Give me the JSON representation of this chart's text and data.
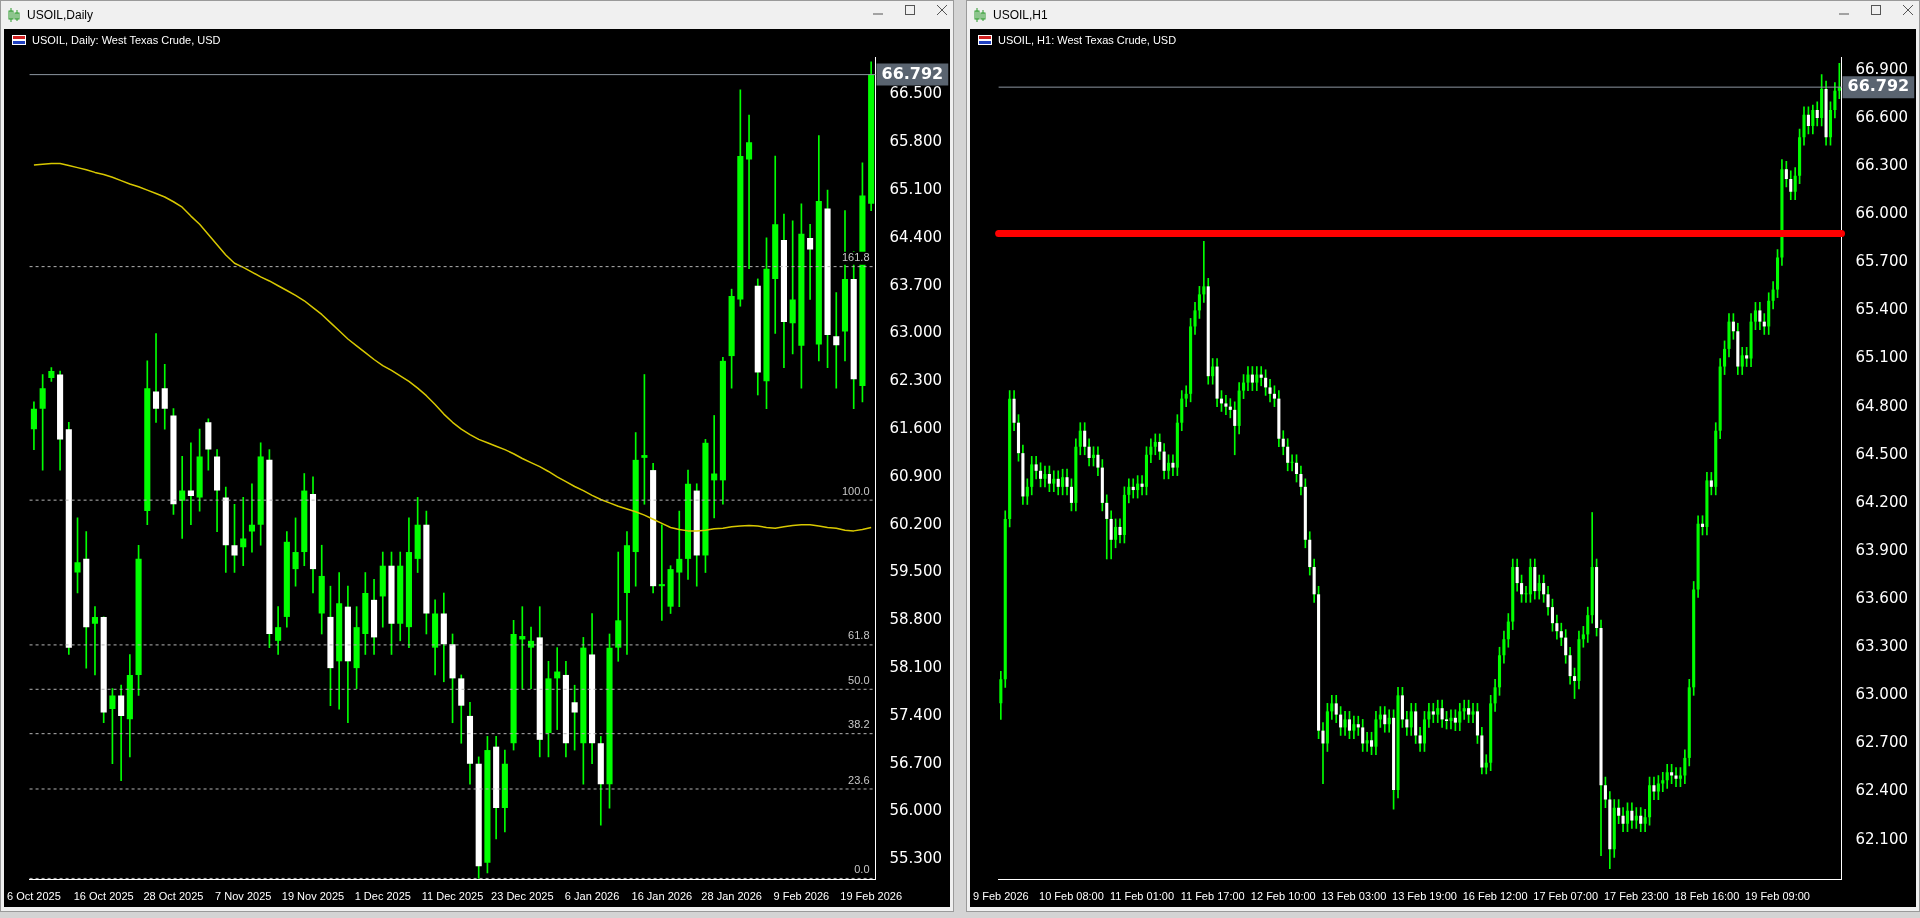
{
  "chart_data": [
    {
      "type": "candlestick",
      "title": "USOIL,Daily",
      "subtitle": "USOIL, Daily:  West Texas Crude, USD",
      "categories": [
        "6 Oct 2025",
        null,
        null,
        null,
        null,
        null,
        null,
        null,
        "16 Oct 2025",
        null,
        null,
        null,
        null,
        null,
        null,
        null,
        "28 Oct 2025",
        null,
        null,
        null,
        null,
        null,
        null,
        null,
        "7 Nov 2025",
        null,
        null,
        null,
        null,
        null,
        null,
        null,
        "19 Nov 2025",
        null,
        null,
        null,
        null,
        null,
        null,
        null,
        "1 Dec 2025",
        null,
        null,
        null,
        null,
        null,
        null,
        null,
        "11 Dec 2025",
        null,
        null,
        null,
        null,
        null,
        null,
        null,
        "23 Dec 2025",
        null,
        null,
        null,
        null,
        null,
        null,
        null,
        "6 Jan 2026",
        null,
        null,
        null,
        null,
        null,
        null,
        null,
        "16 Jan 2026",
        null,
        null,
        null,
        null,
        null,
        null,
        null,
        "28 Jan 2026",
        null,
        null,
        null,
        null,
        null,
        null,
        null,
        "9 Feb 2026",
        null,
        null,
        null,
        null,
        null,
        null,
        null,
        "19 Feb 2026"
      ],
      "ohlc": [
        [
          61.6,
          62.0,
          61.3,
          61.9
        ],
        [
          61.9,
          62.4,
          61.0,
          62.2
        ],
        [
          62.35,
          62.5,
          62.3,
          62.45
        ],
        [
          62.4,
          62.45,
          61.0,
          61.45
        ],
        [
          61.6,
          61.7,
          58.3,
          58.4
        ],
        [
          59.5,
          60.3,
          59.2,
          59.65
        ],
        [
          59.7,
          60.1,
          58.1,
          58.7
        ],
        [
          58.75,
          59.0,
          58.0,
          58.85
        ],
        [
          58.85,
          58.85,
          57.3,
          57.45
        ],
        [
          57.5,
          57.8,
          56.7,
          57.7
        ],
        [
          57.7,
          57.85,
          56.45,
          57.4
        ],
        [
          57.35,
          58.3,
          56.8,
          58.0
        ],
        [
          58.0,
          59.9,
          57.7,
          59.7
        ],
        [
          60.4,
          62.6,
          60.2,
          62.2
        ],
        [
          62.15,
          63.0,
          61.7,
          61.9
        ],
        [
          62.2,
          62.55,
          61.6,
          61.9
        ],
        [
          61.8,
          61.9,
          60.35,
          60.5
        ],
        [
          60.55,
          61.2,
          60.0,
          60.7
        ],
        [
          60.7,
          61.4,
          60.2,
          60.62
        ],
        [
          60.6,
          61.6,
          60.4,
          61.2
        ],
        [
          61.7,
          61.75,
          61.0,
          61.3
        ],
        [
          61.2,
          61.3,
          60.1,
          60.7
        ],
        [
          60.6,
          60.75,
          59.5,
          59.9
        ],
        [
          59.9,
          60.5,
          59.5,
          59.75
        ],
        [
          59.87,
          60.6,
          59.6,
          60.0
        ],
        [
          60.1,
          60.8,
          59.8,
          60.2
        ],
        [
          60.2,
          61.4,
          59.9,
          61.2
        ],
        [
          61.15,
          61.3,
          58.4,
          58.6
        ],
        [
          58.5,
          59.0,
          58.3,
          58.7
        ],
        [
          58.85,
          60.1,
          58.7,
          59.95
        ],
        [
          59.55,
          60.3,
          59.3,
          59.8
        ],
        [
          59.8,
          60.95,
          59.6,
          60.7
        ],
        [
          60.65,
          60.9,
          59.2,
          59.55
        ],
        [
          58.9,
          59.9,
          58.6,
          59.45
        ],
        [
          58.85,
          59.3,
          57.55,
          58.1
        ],
        [
          58.2,
          59.5,
          57.5,
          59.05
        ],
        [
          59.0,
          59.3,
          57.3,
          58.2
        ],
        [
          58.1,
          59.0,
          57.8,
          58.7
        ],
        [
          58.6,
          59.5,
          58.3,
          59.2
        ],
        [
          59.1,
          59.4,
          58.3,
          58.55
        ],
        [
          59.15,
          59.8,
          58.7,
          59.6
        ],
        [
          59.6,
          59.8,
          58.3,
          58.75
        ],
        [
          58.75,
          59.8,
          58.5,
          59.6
        ],
        [
          58.7,
          60.3,
          58.4,
          59.8
        ],
        [
          59.7,
          60.6,
          59.5,
          60.2
        ],
        [
          60.2,
          60.4,
          58.6,
          58.9
        ],
        [
          58.4,
          59.1,
          58.0,
          58.9
        ],
        [
          58.9,
          59.2,
          57.9,
          58.45
        ],
        [
          58.45,
          58.6,
          57.3,
          57.95
        ],
        [
          57.95,
          58.0,
          57.0,
          57.55
        ],
        [
          57.4,
          57.6,
          56.4,
          56.7
        ],
        [
          56.7,
          56.8,
          55.02,
          55.2
        ],
        [
          55.25,
          57.1,
          55.1,
          56.9
        ],
        [
          56.95,
          57.1,
          55.6,
          56.05
        ],
        [
          56.05,
          56.9,
          55.7,
          56.7
        ],
        [
          57.0,
          58.8,
          56.9,
          58.6
        ],
        [
          58.52,
          59.0,
          57.8,
          58.57
        ],
        [
          58.4,
          58.7,
          57.8,
          58.5
        ],
        [
          58.55,
          59.0,
          56.8,
          57.05
        ],
        [
          57.15,
          58.2,
          56.8,
          57.95
        ],
        [
          57.95,
          58.4,
          57.2,
          58.05
        ],
        [
          58.0,
          58.2,
          56.8,
          57.0
        ],
        [
          57.6,
          57.85,
          56.9,
          57.45
        ],
        [
          57.0,
          58.55,
          56.4,
          58.4
        ],
        [
          58.3,
          58.9,
          56.7,
          57.0
        ],
        [
          57.0,
          57.1,
          55.8,
          56.4
        ],
        [
          56.4,
          58.6,
          56.05,
          58.4
        ],
        [
          58.4,
          59.8,
          58.2,
          58.8
        ],
        [
          59.2,
          60.1,
          58.3,
          59.9
        ],
        [
          59.8,
          61.55,
          59.3,
          61.15
        ],
        [
          61.18,
          62.4,
          60.5,
          61.22
        ],
        [
          61.0,
          61.1,
          59.2,
          59.3
        ],
        [
          59.3,
          60.2,
          58.8,
          59.33
        ],
        [
          59.0,
          59.6,
          58.9,
          59.55
        ],
        [
          59.5,
          60.4,
          59.0,
          59.7
        ],
        [
          59.7,
          61.0,
          59.4,
          60.8
        ],
        [
          60.7,
          60.8,
          59.3,
          59.75
        ],
        [
          59.75,
          61.45,
          59.5,
          61.4
        ],
        [
          60.85,
          61.8,
          60.3,
          60.95
        ],
        [
          60.85,
          62.65,
          60.5,
          62.6
        ],
        [
          62.67,
          63.65,
          62.2,
          63.55
        ],
        [
          63.5,
          66.57,
          63.4,
          65.6
        ],
        [
          65.55,
          66.2,
          63.95,
          65.8
        ],
        [
          63.7,
          63.8,
          62.1,
          62.43
        ],
        [
          62.3,
          64.4,
          61.9,
          63.95
        ],
        [
          63.8,
          65.6,
          63.0,
          64.6
        ],
        [
          64.37,
          64.75,
          62.5,
          63.17
        ],
        [
          63.15,
          64.65,
          62.7,
          63.5
        ],
        [
          62.82,
          64.9,
          62.2,
          64.46
        ],
        [
          64.4,
          64.6,
          63.5,
          64.23
        ],
        [
          62.84,
          65.9,
          62.6,
          64.94
        ],
        [
          64.83,
          65.1,
          62.5,
          62.98
        ],
        [
          62.96,
          63.6,
          62.2,
          62.83
        ],
        [
          63.03,
          64.8,
          62.6,
          63.8
        ],
        [
          63.8,
          64.2,
          61.9,
          62.33
        ],
        [
          62.23,
          65.5,
          62.0,
          65.02
        ],
        [
          64.9,
          66.98,
          64.8,
          66.792
        ]
      ],
      "series": [
        {
          "type": "line",
          "color": "#d8c800",
          "values": [
            65.47,
            65.48,
            65.49,
            65.49,
            65.46,
            65.43,
            65.4,
            65.36,
            65.33,
            65.29,
            65.24,
            65.19,
            65.15,
            65.1,
            65.05,
            65.0,
            64.93,
            64.85,
            64.72,
            64.6,
            64.45,
            64.3,
            64.15,
            64.03,
            63.97,
            63.9,
            63.83,
            63.77,
            63.7,
            63.63,
            63.56,
            63.48,
            63.38,
            63.28,
            63.16,
            63.04,
            62.92,
            62.82,
            62.72,
            62.62,
            62.53,
            62.46,
            62.38,
            62.3,
            62.2,
            62.09,
            61.96,
            61.82,
            61.7,
            61.6,
            61.52,
            61.45,
            61.4,
            61.35,
            61.3,
            61.24,
            61.17,
            61.11,
            61.05,
            60.98,
            60.9,
            60.83,
            60.76,
            60.7,
            60.63,
            60.57,
            60.52,
            60.47,
            60.43,
            60.39,
            60.34,
            60.28,
            60.22,
            60.16,
            60.13,
            60.11,
            60.11,
            60.12,
            60.14,
            60.15,
            60.17,
            60.18,
            60.19,
            60.18,
            60.16,
            60.15,
            60.17,
            60.19,
            60.2,
            60.2,
            60.18,
            60.16,
            60.15,
            60.12,
            60.11,
            60.13,
            60.16
          ]
        }
      ],
      "ref_lines": [
        {
          "axis": "y",
          "value": 66.792,
          "label": "66.792",
          "color": "#8c96a0"
        },
        {
          "axis": "y",
          "value": 63.98,
          "label": null,
          "color": "#b4b4b4",
          "line_style": "dashed"
        },
        {
          "axis": "y",
          "value": 60.56,
          "label": null,
          "color": "#b4b4b4",
          "line_style": "dashed"
        },
        {
          "axis": "y",
          "value": 58.44,
          "label": null,
          "color": "#b4b4b4",
          "line_style": "dashed"
        },
        {
          "axis": "y",
          "value": 57.79,
          "label": null,
          "color": "#b4b4b4",
          "line_style": "dashed"
        },
        {
          "axis": "y",
          "value": 57.14,
          "label": null,
          "color": "#b4b4b4",
          "line_style": "dashed"
        },
        {
          "axis": "y",
          "value": 56.33,
          "label": null,
          "color": "#b4b4b4",
          "line_style": "dashed"
        },
        {
          "axis": "y",
          "value": 55.02,
          "label": null,
          "color": "#b4b4b4",
          "line_style": "dashed"
        }
      ],
      "annotations": [
        {
          "text": "161.8",
          "y": 63.98
        },
        {
          "text": "100.0",
          "y": 60.56
        },
        {
          "text": "61.8",
          "y": 58.44
        },
        {
          "text": "50.0",
          "y": 57.79
        },
        {
          "text": "38.2",
          "y": 57.14
        },
        {
          "text": "23.6",
          "y": 56.33
        },
        {
          "text": "0.0",
          "y": 55.02
        }
      ],
      "ylim": [
        55.0,
        67.05
      ],
      "yticks": [
        {
          "value": 55.3,
          "label": "55.300"
        },
        {
          "value": 56.0,
          "label": "56.000"
        },
        {
          "value": 56.7,
          "label": "56.700"
        },
        {
          "value": 57.4,
          "label": "57.400"
        },
        {
          "value": 58.1,
          "label": "58.100"
        },
        {
          "value": 58.8,
          "label": "58.800"
        },
        {
          "value": 59.5,
          "label": "59.500"
        },
        {
          "value": 60.2,
          "label": "60.200"
        },
        {
          "value": 60.9,
          "label": "60.900"
        },
        {
          "value": 61.6,
          "label": "61.600"
        },
        {
          "value": 62.3,
          "label": "62.300"
        },
        {
          "value": 63.0,
          "label": "63.000"
        },
        {
          "value": 63.7,
          "label": "63.700"
        },
        {
          "value": 64.4,
          "label": "64.400"
        },
        {
          "value": 65.1,
          "label": "65.100"
        },
        {
          "value": 65.8,
          "label": "65.800"
        },
        {
          "value": 66.5,
          "label": "66.500"
        }
      ],
      "grid": false,
      "legend": false
    },
    {
      "type": "candlestick",
      "title": "USOIL,H1",
      "subtitle": "USOIL, H1:  West Texas Crude, USD",
      "categories": [
        "9 Feb 2026",
        null,
        null,
        null,
        null,
        null,
        null,
        null,
        null,
        null,
        null,
        null,
        null,
        null,
        null,
        null,
        "10 Feb 08:00",
        null,
        null,
        null,
        null,
        null,
        null,
        null,
        null,
        null,
        null,
        null,
        null,
        null,
        null,
        null,
        "11 Feb 01:00",
        null,
        null,
        null,
        null,
        null,
        null,
        null,
        null,
        null,
        null,
        null,
        null,
        null,
        null,
        null,
        "11 Feb 17:00",
        null,
        null,
        null,
        null,
        null,
        null,
        null,
        null,
        null,
        null,
        null,
        null,
        null,
        null,
        null,
        "12 Feb 10:00",
        null,
        null,
        null,
        null,
        null,
        null,
        null,
        null,
        null,
        null,
        null,
        null,
        null,
        null,
        null,
        "13 Feb 03:00",
        null,
        null,
        null,
        null,
        null,
        null,
        null,
        null,
        null,
        null,
        null,
        null,
        null,
        null,
        null,
        "13 Feb 19:00",
        null,
        null,
        null,
        null,
        null,
        null,
        null,
        null,
        null,
        null,
        null,
        null,
        null,
        null,
        null,
        "16 Feb 12:00",
        null,
        null,
        null,
        null,
        null,
        null,
        null,
        null,
        null,
        null,
        null,
        null,
        null,
        null,
        null,
        "17 Feb 07:00",
        null,
        null,
        null,
        null,
        null,
        null,
        null,
        null,
        null,
        null,
        null,
        null,
        null,
        null,
        null,
        "17 Feb 23:00",
        null,
        null,
        null,
        null,
        null,
        null,
        null,
        null,
        null,
        null,
        null,
        null,
        null,
        null,
        null,
        "18 Feb 16:00",
        null,
        null,
        null,
        null,
        null,
        null,
        null,
        null,
        null,
        null,
        null,
        null,
        null,
        null,
        null,
        "19 Feb 09:00",
        null,
        null,
        null,
        null,
        null,
        null,
        null,
        null,
        null,
        null,
        null,
        null,
        null,
        null
      ],
      "ohlc": [
        [
          62.95,
          63.15,
          62.85,
          63.1
        ],
        [
          63.1,
          64.15,
          63.05,
          64.1
        ],
        [
          64.1,
          64.9,
          64.05,
          64.85
        ],
        [
          64.85,
          64.9,
          64.65,
          64.7
        ],
        [
          64.7,
          64.75,
          64.46,
          64.51
        ],
        [
          64.51,
          64.56,
          64.19,
          64.24
        ],
        [
          64.24,
          64.35,
          64.19,
          64.3
        ],
        [
          64.3,
          64.49,
          64.25,
          64.44
        ],
        [
          64.44,
          64.49,
          64.35,
          64.4
        ],
        [
          64.4,
          64.45,
          64.3,
          64.35
        ],
        [
          64.35,
          64.43,
          64.3,
          64.38
        ],
        [
          64.38,
          64.43,
          64.27,
          64.32
        ],
        [
          64.32,
          64.4,
          64.27,
          64.35
        ],
        [
          64.35,
          64.4,
          64.25,
          64.3
        ],
        [
          64.3,
          64.41,
          64.25,
          64.36
        ],
        [
          64.36,
          64.41,
          64.25,
          64.3
        ],
        [
          64.3,
          64.35,
          64.15,
          64.2
        ],
        [
          64.2,
          64.6,
          64.15,
          64.55
        ],
        [
          64.55,
          64.7,
          64.5,
          64.65
        ],
        [
          64.65,
          64.7,
          64.5,
          64.55
        ],
        [
          64.55,
          64.6,
          64.43,
          64.48
        ],
        [
          64.48,
          64.55,
          64.43,
          64.5
        ],
        [
          64.5,
          64.55,
          64.37,
          64.42
        ],
        [
          64.42,
          64.47,
          64.15,
          64.2
        ],
        [
          64.2,
          64.25,
          63.85,
          64.1
        ],
        [
          64.1,
          64.15,
          63.85,
          63.97
        ],
        [
          63.97,
          64.1,
          63.92,
          64.05
        ],
        [
          64.05,
          64.1,
          63.95,
          64.0
        ],
        [
          64.0,
          64.3,
          63.95,
          64.25
        ],
        [
          64.25,
          64.35,
          64.2,
          64.3
        ],
        [
          64.3,
          64.35,
          64.23,
          64.28
        ],
        [
          64.28,
          64.37,
          64.23,
          64.32
        ],
        [
          64.32,
          64.37,
          64.25,
          64.3
        ],
        [
          64.3,
          64.55,
          64.25,
          64.5
        ],
        [
          64.5,
          64.6,
          64.45,
          64.55
        ],
        [
          64.55,
          64.63,
          64.5,
          64.58
        ],
        [
          64.58,
          64.63,
          64.47,
          64.52
        ],
        [
          64.52,
          64.57,
          64.35,
          64.4
        ],
        [
          64.4,
          64.5,
          64.35,
          64.45
        ],
        [
          64.45,
          64.5,
          64.37,
          64.42
        ],
        [
          64.42,
          64.75,
          64.37,
          64.7
        ],
        [
          64.7,
          64.9,
          64.65,
          64.85
        ],
        [
          64.85,
          64.93,
          64.8,
          64.88
        ],
        [
          64.88,
          65.35,
          64.83,
          65.3
        ],
        [
          65.3,
          65.45,
          65.25,
          65.4
        ],
        [
          65.4,
          65.55,
          65.35,
          65.5
        ],
        [
          65.5,
          65.83,
          65.45,
          65.55
        ],
        [
          65.55,
          65.6,
          64.94,
          64.99
        ],
        [
          64.99,
          65.1,
          64.94,
          65.05
        ],
        [
          65.05,
          65.1,
          64.8,
          64.85
        ],
        [
          64.85,
          64.9,
          64.77,
          64.82
        ],
        [
          64.82,
          64.87,
          64.75,
          64.8
        ],
        [
          64.8,
          64.85,
          64.73,
          64.78
        ],
        [
          64.78,
          64.83,
          64.5,
          64.68
        ],
        [
          64.68,
          64.95,
          64.63,
          64.9
        ],
        [
          64.9,
          65.0,
          64.85,
          64.95
        ],
        [
          64.95,
          65.05,
          64.9,
          65.0
        ],
        [
          65.0,
          65.05,
          64.9,
          64.95
        ],
        [
          64.95,
          65.05,
          64.9,
          65.0
        ],
        [
          65.0,
          65.05,
          64.93,
          64.98
        ],
        [
          64.98,
          65.03,
          64.87,
          64.92
        ],
        [
          64.92,
          64.97,
          64.83,
          64.88
        ],
        [
          64.88,
          64.93,
          64.8,
          64.85
        ],
        [
          64.85,
          64.9,
          64.55,
          64.6
        ],
        [
          64.6,
          64.65,
          64.5,
          64.55
        ],
        [
          64.55,
          64.6,
          64.4,
          64.45
        ],
        [
          64.45,
          64.5,
          64.4,
          64.45
        ],
        [
          64.45,
          64.5,
          64.33,
          64.38
        ],
        [
          64.38,
          64.43,
          64.25,
          64.3
        ],
        [
          64.3,
          64.35,
          63.92,
          63.97
        ],
        [
          63.97,
          64.02,
          63.75,
          63.8
        ],
        [
          63.8,
          63.85,
          63.58,
          63.63
        ],
        [
          63.63,
          63.68,
          62.73,
          62.78
        ],
        [
          62.78,
          62.83,
          62.45,
          62.7
        ],
        [
          62.7,
          62.95,
          62.65,
          62.9
        ],
        [
          62.9,
          63.0,
          62.85,
          62.95
        ],
        [
          62.95,
          63.0,
          62.83,
          62.88
        ],
        [
          62.88,
          62.93,
          62.75,
          62.8
        ],
        [
          62.8,
          62.9,
          62.75,
          62.85
        ],
        [
          62.85,
          62.9,
          62.73,
          62.78
        ],
        [
          62.78,
          62.87,
          62.73,
          62.82
        ],
        [
          62.82,
          62.87,
          62.75,
          62.8
        ],
        [
          62.8,
          62.85,
          62.65,
          62.7
        ],
        [
          62.7,
          62.77,
          62.65,
          62.72
        ],
        [
          62.72,
          62.77,
          62.63,
          62.68
        ],
        [
          62.68,
          62.9,
          62.63,
          62.85
        ],
        [
          62.85,
          62.93,
          62.8,
          62.88
        ],
        [
          62.88,
          62.93,
          62.77,
          62.82
        ],
        [
          62.82,
          62.91,
          62.77,
          62.86
        ],
        [
          62.86,
          62.91,
          62.29,
          62.41
        ],
        [
          62.41,
          63.05,
          62.36,
          63.0
        ],
        [
          63.0,
          63.05,
          62.8,
          62.85
        ],
        [
          62.85,
          62.9,
          62.75,
          62.8
        ],
        [
          62.8,
          62.95,
          62.75,
          62.9
        ],
        [
          62.9,
          62.95,
          62.7,
          62.75
        ],
        [
          62.75,
          62.8,
          62.65,
          62.7
        ],
        [
          62.7,
          62.9,
          62.65,
          62.85
        ],
        [
          62.85,
          62.95,
          62.8,
          62.9
        ],
        [
          62.9,
          62.95,
          62.83,
          62.88
        ],
        [
          62.88,
          62.97,
          62.83,
          62.92
        ],
        [
          62.92,
          62.97,
          62.8,
          62.85
        ],
        [
          62.85,
          62.9,
          62.79,
          62.84
        ],
        [
          62.84,
          62.91,
          62.79,
          62.86
        ],
        [
          62.86,
          62.91,
          62.78,
          62.83
        ],
        [
          62.83,
          62.95,
          62.78,
          62.9
        ],
        [
          62.9,
          62.97,
          62.85,
          62.92
        ],
        [
          62.92,
          62.97,
          62.83,
          62.88
        ],
        [
          62.88,
          62.95,
          62.83,
          62.9
        ],
        [
          62.9,
          62.95,
          62.7,
          62.75
        ],
        [
          62.75,
          62.8,
          62.51,
          62.55
        ],
        [
          62.55,
          62.63,
          62.51,
          62.58
        ],
        [
          62.58,
          63.0,
          62.53,
          62.95
        ],
        [
          62.95,
          63.1,
          62.9,
          63.05
        ],
        [
          63.05,
          63.3,
          63.0,
          63.25
        ],
        [
          63.25,
          63.4,
          63.2,
          63.35
        ],
        [
          63.35,
          63.51,
          63.3,
          63.46
        ],
        [
          63.46,
          63.85,
          63.41,
          63.8
        ],
        [
          63.8,
          63.85,
          63.65,
          63.7
        ],
        [
          63.7,
          63.75,
          63.58,
          63.63
        ],
        [
          63.63,
          63.68,
          63.58,
          63.63
        ],
        [
          63.63,
          63.85,
          63.58,
          63.8
        ],
        [
          63.8,
          63.85,
          63.6,
          63.65
        ],
        [
          63.65,
          63.75,
          63.6,
          63.7
        ],
        [
          63.7,
          63.75,
          63.58,
          63.63
        ],
        [
          63.63,
          63.68,
          63.5,
          63.55
        ],
        [
          63.55,
          63.6,
          63.4,
          63.45
        ],
        [
          63.45,
          63.5,
          63.35,
          63.4
        ],
        [
          63.4,
          63.45,
          63.31,
          63.36
        ],
        [
          63.36,
          63.41,
          63.2,
          63.25
        ],
        [
          63.25,
          63.3,
          63.07,
          63.12
        ],
        [
          63.12,
          63.17,
          62.98,
          63.09
        ],
        [
          63.09,
          63.4,
          63.04,
          63.35
        ],
        [
          63.35,
          63.43,
          63.3,
          63.38
        ],
        [
          63.38,
          63.55,
          63.33,
          63.5
        ],
        [
          63.5,
          64.14,
          63.45,
          63.8
        ],
        [
          63.8,
          63.85,
          63.37,
          63.42
        ],
        [
          63.42,
          63.47,
          62.0,
          62.44
        ],
        [
          62.44,
          62.49,
          62.3,
          62.35
        ],
        [
          62.35,
          62.4,
          61.92,
          62.04
        ],
        [
          62.04,
          62.35,
          61.99,
          62.3
        ],
        [
          62.3,
          62.35,
          62.2,
          62.25
        ],
        [
          62.25,
          62.3,
          62.15,
          62.2
        ],
        [
          62.2,
          62.33,
          62.15,
          62.28
        ],
        [
          62.28,
          62.33,
          62.17,
          62.22
        ],
        [
          62.22,
          62.3,
          62.17,
          62.25
        ],
        [
          62.25,
          62.3,
          62.15,
          62.2
        ],
        [
          62.2,
          62.29,
          62.15,
          62.24
        ],
        [
          62.24,
          62.49,
          62.19,
          62.44
        ],
        [
          62.44,
          62.49,
          62.35,
          62.4
        ],
        [
          62.4,
          62.5,
          62.35,
          62.45
        ],
        [
          62.45,
          62.52,
          62.4,
          62.47
        ],
        [
          62.47,
          62.57,
          62.42,
          62.52
        ],
        [
          62.52,
          62.57,
          62.45,
          62.5
        ],
        [
          62.5,
          62.55,
          62.43,
          62.48
        ],
        [
          62.48,
          62.55,
          62.43,
          62.5
        ],
        [
          62.5,
          62.66,
          62.45,
          62.61
        ],
        [
          62.61,
          63.1,
          62.56,
          63.05
        ],
        [
          63.05,
          63.71,
          63.0,
          63.66
        ],
        [
          63.66,
          64.12,
          63.61,
          64.07
        ],
        [
          64.07,
          64.12,
          64.0,
          64.05
        ],
        [
          64.05,
          64.39,
          64.0,
          64.34
        ],
        [
          64.34,
          64.39,
          64.25,
          64.3
        ],
        [
          64.3,
          64.7,
          64.25,
          64.65
        ],
        [
          64.65,
          65.1,
          64.6,
          65.05
        ],
        [
          65.05,
          65.21,
          65.0,
          65.16
        ],
        [
          65.16,
          65.38,
          65.11,
          65.33
        ],
        [
          65.33,
          65.38,
          65.22,
          65.27
        ],
        [
          65.27,
          65.32,
          65.0,
          65.05
        ],
        [
          65.05,
          65.17,
          65.0,
          65.12
        ],
        [
          65.12,
          65.17,
          65.05,
          65.1
        ],
        [
          65.1,
          65.38,
          65.05,
          65.33
        ],
        [
          65.33,
          65.45,
          65.28,
          65.4
        ],
        [
          65.4,
          65.45,
          65.28,
          65.33
        ],
        [
          65.33,
          65.38,
          65.25,
          65.3
        ],
        [
          65.3,
          65.51,
          65.25,
          65.46
        ],
        [
          65.46,
          65.58,
          65.41,
          65.53
        ],
        [
          65.53,
          65.78,
          65.48,
          65.73
        ],
        [
          65.73,
          66.34,
          65.68,
          66.28
        ],
        [
          66.28,
          66.33,
          66.17,
          66.22
        ],
        [
          66.22,
          66.27,
          66.09,
          66.14
        ],
        [
          66.14,
          66.29,
          66.09,
          66.24
        ],
        [
          66.24,
          66.53,
          66.19,
          66.48
        ],
        [
          66.48,
          66.67,
          66.43,
          66.62
        ],
        [
          66.62,
          66.67,
          66.5,
          66.55
        ],
        [
          66.55,
          66.68,
          66.5,
          66.65
        ],
        [
          66.65,
          66.7,
          66.55,
          66.6
        ],
        [
          66.6,
          66.87,
          66.55,
          66.78
        ],
        [
          66.78,
          66.83,
          66.43,
          66.48
        ],
        [
          66.48,
          66.7,
          66.43,
          66.65
        ],
        [
          66.65,
          66.82,
          66.6,
          66.77
        ],
        [
          66.77,
          66.94,
          66.72,
          66.792
        ]
      ],
      "ref_lines": [
        {
          "axis": "y",
          "value": 66.792,
          "label": "66.792",
          "color": "#8c96a0"
        },
        {
          "axis": "y",
          "value": 65.88,
          "label": null,
          "color": "#ff0000",
          "line_style": "solid"
        }
      ],
      "ylim": [
        61.85,
        66.98
      ],
      "yticks": [
        {
          "value": 62.1,
          "label": "62.100"
        },
        {
          "value": 62.4,
          "label": "62.400"
        },
        {
          "value": 62.7,
          "label": "62.700"
        },
        {
          "value": 63.0,
          "label": "63.000"
        },
        {
          "value": 63.3,
          "label": "63.300"
        },
        {
          "value": 63.6,
          "label": "63.600"
        },
        {
          "value": 63.9,
          "label": "63.900"
        },
        {
          "value": 64.2,
          "label": "64.200"
        },
        {
          "value": 64.5,
          "label": "64.500"
        },
        {
          "value": 64.8,
          "label": "64.800"
        },
        {
          "value": 65.1,
          "label": "65.100"
        },
        {
          "value": 65.4,
          "label": "65.400"
        },
        {
          "value": 65.7,
          "label": "65.700"
        },
        {
          "value": 66.0,
          "label": "66.000"
        },
        {
          "value": 66.3,
          "label": "66.300"
        },
        {
          "value": 66.6,
          "label": "66.600"
        },
        {
          "value": 66.9,
          "label": "66.900"
        }
      ],
      "grid": false,
      "legend": false
    }
  ]
}
